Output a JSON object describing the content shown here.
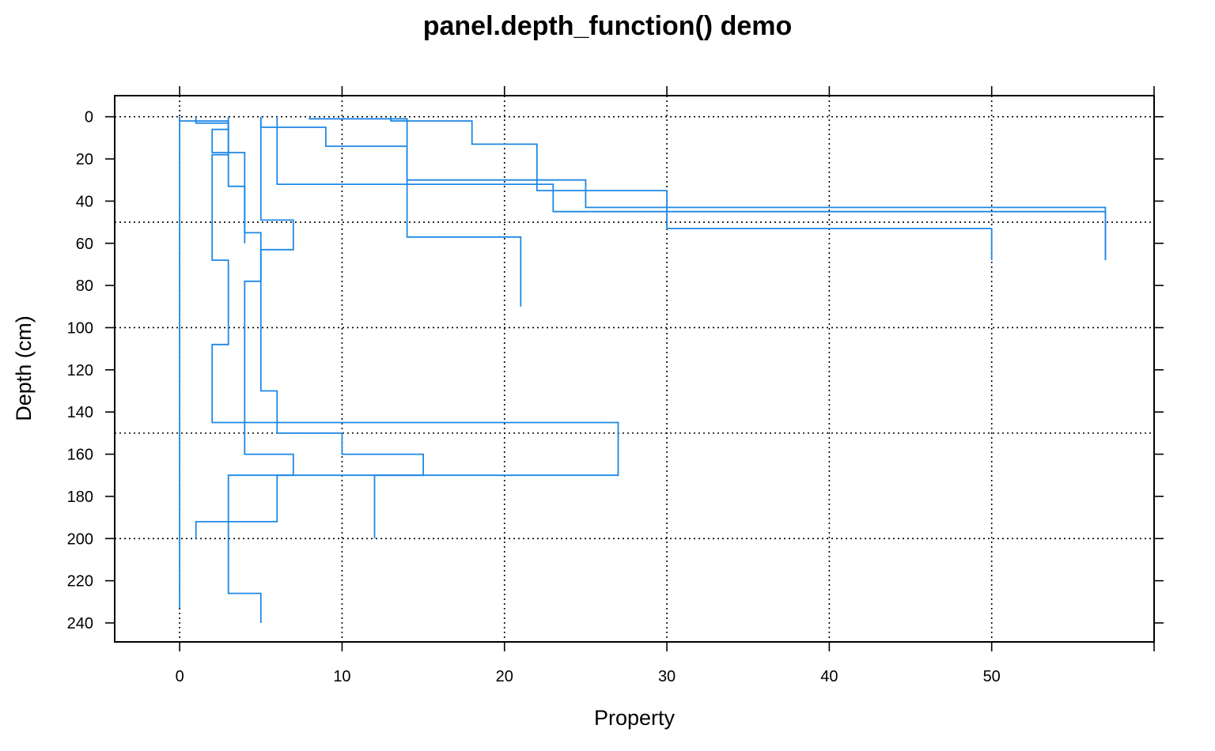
{
  "chart_data": {
    "type": "line",
    "title": "panel.depth_function() demo",
    "xlabel": "Property",
    "ylabel": "Depth (cm)",
    "xlim": [
      -4,
      60
    ],
    "ylim": [
      249,
      -10
    ],
    "y_reversed": true,
    "xticks": [
      0,
      10,
      20,
      30,
      40,
      50
    ],
    "yticks": [
      0,
      20,
      40,
      60,
      80,
      100,
      120,
      140,
      160,
      180,
      200,
      220,
      240
    ],
    "xgrid": [
      0,
      10,
      20,
      30,
      40,
      50,
      60
    ],
    "ygrid": [
      0,
      50,
      100,
      150,
      200
    ],
    "grid": true,
    "line_color": "#1e88e5",
    "series": [
      {
        "horizons": [
          [
            0,
            2,
            0
          ],
          [
            2,
            6,
            3
          ],
          [
            6,
            17,
            2
          ],
          [
            17,
            60,
            4
          ]
        ]
      },
      {
        "horizons": [
          [
            0,
            3,
            1
          ],
          [
            3,
            18,
            3
          ],
          [
            18,
            68,
            2
          ],
          [
            68,
            108,
            3
          ],
          [
            108,
            145,
            2
          ],
          [
            145,
            170,
            27
          ],
          [
            170,
            226,
            3
          ],
          [
            226,
            240,
            5
          ]
        ]
      },
      {
        "horizons": [
          [
            0,
            2,
            13
          ],
          [
            2,
            13,
            18
          ],
          [
            13,
            35,
            22
          ],
          [
            35,
            53,
            30
          ],
          [
            53,
            68,
            50
          ]
        ]
      },
      {
        "horizons": [
          [
            0,
            1,
            8
          ],
          [
            1,
            30,
            14
          ],
          [
            30,
            43,
            25
          ],
          [
            43,
            68,
            57
          ]
        ]
      },
      {
        "horizons": [
          [
            0,
            2,
            6
          ],
          [
            2,
            32,
            6
          ],
          [
            32,
            45,
            23
          ],
          [
            45,
            68,
            57
          ]
        ]
      },
      {
        "horizons": [
          [
            0,
            5,
            5
          ],
          [
            5,
            14,
            9
          ],
          [
            14,
            49,
            14
          ],
          [
            49,
            57,
            14
          ],
          [
            57,
            90,
            21
          ]
        ]
      },
      {
        "horizons": [
          [
            0,
            14,
            5
          ],
          [
            14,
            49,
            5
          ],
          [
            49,
            63,
            7
          ],
          [
            63,
            130,
            5
          ],
          [
            130,
            150,
            6
          ],
          [
            150,
            160,
            10
          ],
          [
            160,
            170,
            15
          ],
          [
            170,
            200,
            12
          ]
        ]
      },
      {
        "horizons": [
          [
            0,
            78,
            0
          ],
          [
            78,
            233,
            0
          ]
        ]
      },
      {
        "horizons": [
          [
            0,
            33,
            3
          ],
          [
            33,
            55,
            4
          ],
          [
            55,
            78,
            5
          ],
          [
            78,
            160,
            4
          ],
          [
            160,
            170,
            7
          ],
          [
            170,
            192,
            6
          ],
          [
            192,
            200,
            1
          ]
        ]
      }
    ]
  }
}
